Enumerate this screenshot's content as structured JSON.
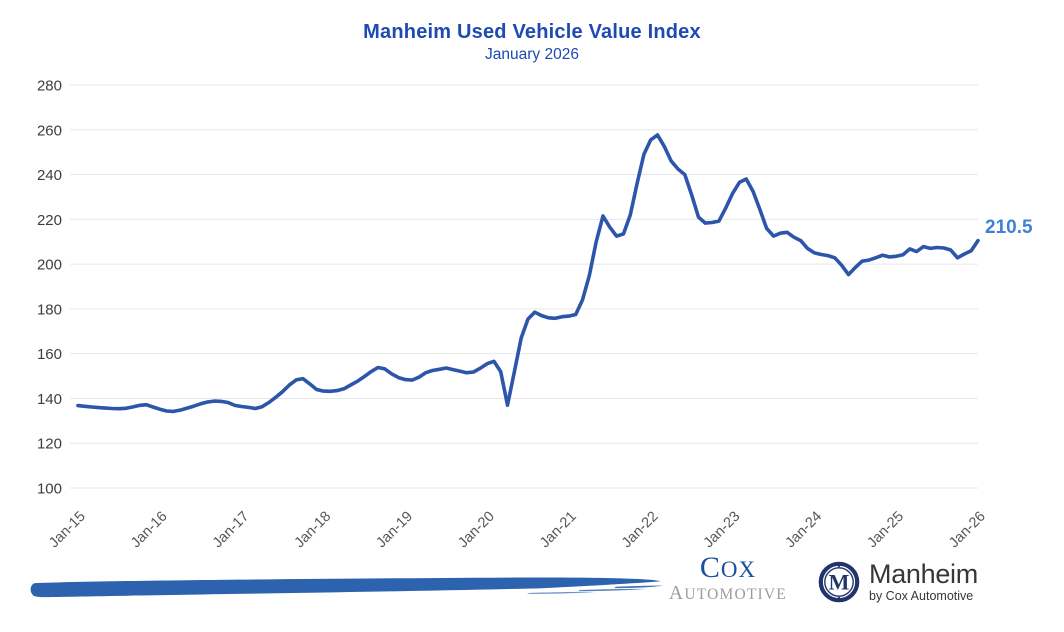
{
  "header": {
    "title": "Manheim Used Vehicle Value Index",
    "subtitle": "January 2026"
  },
  "annotations": {
    "last_value": "210.5"
  },
  "colors": {
    "title": "#1e4ab4",
    "line": "#2d55a9",
    "end_label": "#3e82d8",
    "grid": "#e7e7e7",
    "y_tick_text": "#3d3d3d",
    "x_tick_text": "#565656",
    "brush": "#2d62ae"
  },
  "chart_data": {
    "type": "line",
    "title": "Manheim Used Vehicle Value Index",
    "subtitle": "January 2026",
    "x_start": "2015-01",
    "x_interval": "month",
    "x_tick_labels": [
      "Jan-15",
      "Jan-16",
      "Jan-17",
      "Jan-18",
      "Jan-19",
      "Jan-20",
      "Jan-21",
      "Jan-22",
      "Jan-23",
      "Jan-24",
      "Jan-25",
      "Jan-26"
    ],
    "y_ticks": [
      100,
      120,
      140,
      160,
      180,
      200,
      220,
      240,
      260,
      280
    ],
    "ylim": [
      100,
      280
    ],
    "grid": "horizontal",
    "legend": "none",
    "line_color": "#2d55a9",
    "last_point_label": "210.5",
    "series": [
      {
        "name": "Manheim Used Vehicle Value Index",
        "values": [
          136.8,
          136.5,
          136.2,
          135.9,
          135.7,
          135.5,
          135.4,
          135.6,
          136.2,
          136.9,
          137.2,
          136.2,
          135.2,
          134.4,
          134.2,
          134.8,
          135.7,
          136.6,
          137.6,
          138.4,
          138.8,
          138.7,
          138.2,
          136.9,
          136.4,
          136.0,
          135.5,
          136.3,
          138.2,
          140.5,
          143.0,
          146.0,
          148.3,
          148.8,
          146.5,
          144.0,
          143.3,
          143.2,
          143.5,
          144.3,
          146.0,
          147.7,
          149.8,
          152.0,
          153.8,
          153.2,
          151.0,
          149.3,
          148.4,
          148.2,
          149.5,
          151.5,
          152.5,
          153.0,
          153.6,
          152.9,
          152.2,
          151.5,
          151.8,
          153.5,
          155.5,
          156.6,
          152.0,
          137.0,
          152.0,
          167.0,
          175.5,
          178.5,
          177.0,
          176.0,
          175.8,
          176.5,
          176.8,
          177.5,
          184.0,
          195.0,
          210.0,
          221.5,
          216.5,
          212.5,
          213.5,
          222.0,
          236.0,
          249.0,
          255.5,
          257.7,
          252.5,
          246.0,
          242.5,
          240.0,
          231.0,
          221.0,
          218.3,
          218.6,
          219.2,
          225.0,
          231.5,
          236.5,
          238.0,
          232.5,
          224.5,
          216.0,
          212.5,
          213.8,
          214.2,
          212.0,
          210.5,
          207.0,
          205.0,
          204.3,
          203.8,
          202.8,
          199.5,
          195.3,
          198.5,
          201.3,
          201.8,
          202.8,
          204.0,
          203.2,
          203.5,
          204.2,
          206.8,
          205.6,
          207.8,
          207.0,
          207.4,
          207.2,
          206.3,
          202.8,
          204.5,
          206.0,
          210.5
        ]
      }
    ]
  },
  "footer": {
    "cox": {
      "c": "C",
      "ox": "OX",
      "a": "A",
      "utomotive": "UTOMOTIVE"
    },
    "manheim": {
      "monogram": "M",
      "name": "Manheim",
      "byline": "by Cox Automotive"
    }
  }
}
